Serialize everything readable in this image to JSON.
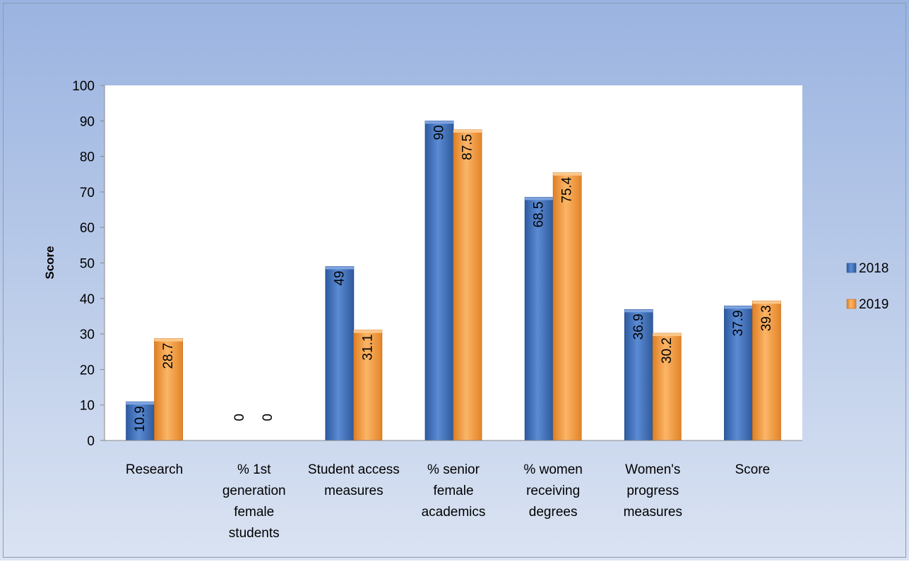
{
  "chart_data": {
    "type": "bar",
    "title": "",
    "xlabel": "",
    "ylabel": "Score",
    "ylim": [
      0,
      100
    ],
    "yticks": [
      0,
      10,
      20,
      30,
      40,
      50,
      60,
      70,
      80,
      90,
      100
    ],
    "categories": [
      "Research",
      "% 1st generation female students",
      "Student access measures",
      "% senior female academics",
      "% women receiving degrees",
      "Women's progress measures",
      "Score"
    ],
    "category_lines": [
      [
        "Research"
      ],
      [
        "% 1st",
        "generation",
        "female",
        "students"
      ],
      [
        "Student access",
        "measures"
      ],
      [
        "% senior",
        "female",
        "academics"
      ],
      [
        "% women",
        "receiving",
        "degrees"
      ],
      [
        "Women's",
        "progress",
        "measures"
      ],
      [
        "Score"
      ]
    ],
    "series": [
      {
        "name": "2018",
        "color": "#3d6db5",
        "values": [
          10.9,
          0,
          49,
          90,
          68.5,
          36.9,
          37.9
        ]
      },
      {
        "name": "2019",
        "color": "#f39a3c",
        "values": [
          28.7,
          0,
          31.1,
          87.5,
          75.4,
          30.2,
          39.3
        ]
      }
    ],
    "grid": false,
    "legend": "right",
    "data_labels": "rotated-inside"
  }
}
